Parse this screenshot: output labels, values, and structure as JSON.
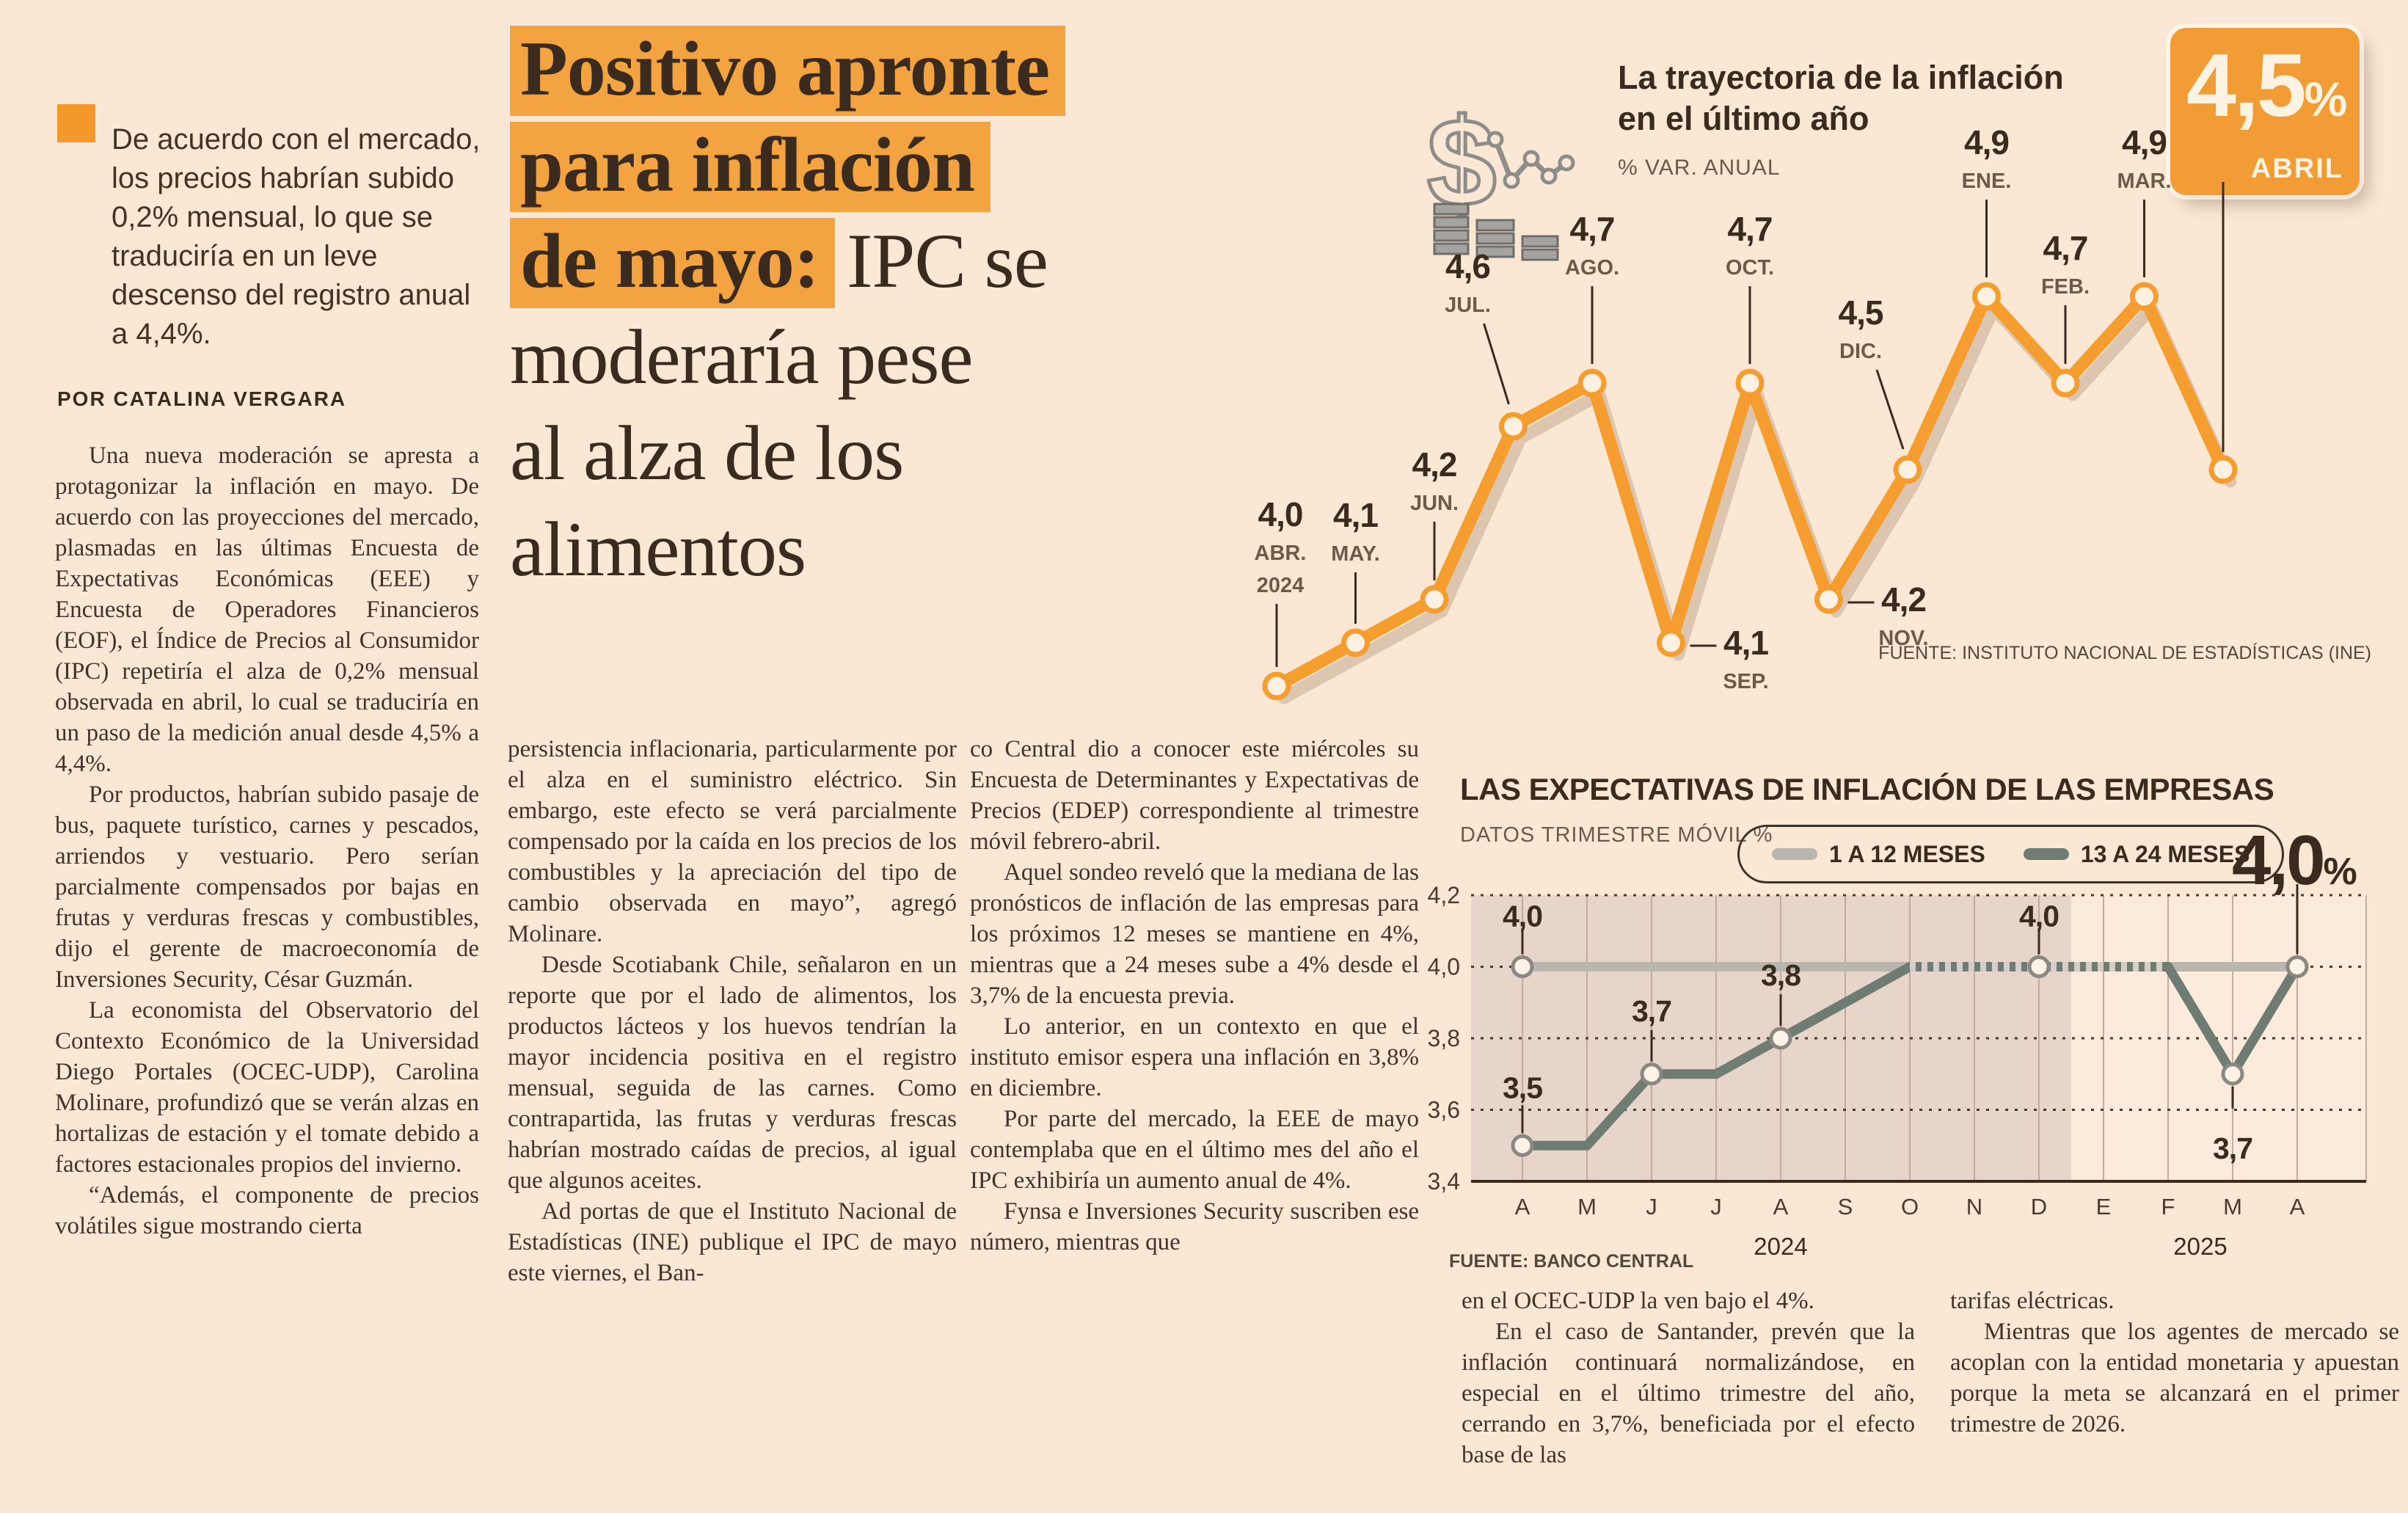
{
  "summary": {
    "text": "De acuerdo con el mercado, los precios habrían subido 0,2% mensual, lo que se traduciría en un leve descenso del registro anual a 4,4%."
  },
  "byline": "POR CATALINA VERGARA",
  "headline": {
    "highlight_line1": "Positivo apronte",
    "highlight_line2": "para inflación",
    "highlight_line3": "de mayo:",
    "rest_inline": "IPC se",
    "rest_line1": "moderaría pese",
    "rest_line2": "al alza de los",
    "rest_line3": "alimentos"
  },
  "article": {
    "col1": [
      "Una nueva moderación se apresta a protagonizar la inflación en mayo. De acuerdo con las proyecciones del mercado, plasmadas en las últimas Encuesta de Expectativas Económicas (EEE) y Encuesta de Operadores Financieros (EOF), el Índice de Precios al Consumidor (IPC) repetiría el alza de 0,2% mensual observada en abril, lo cual se traduciría en un paso de la medición anual desde 4,5% a 4,4%.",
      "Por productos, habrían subido pasaje de bus, paquete turístico, carnes y pescados, arriendos y vestuario. Pero serían parcialmente compensados por bajas en frutas y verduras frescas y combustibles, dijo el gerente de macroeconomía de Inversiones Security, César Guzmán.",
      "La economista del Observatorio del Contexto Económico de la Universidad Diego Portales (OCEC-UDP), Carolina Molinare, profundizó que se verán alzas en hortalizas de estación y el tomate debido a factores estacionales propios del invierno.",
      "“Además, el componente de precios volátiles sigue mostrando cierta"
    ],
    "col2": [
      "persistencia inflacionaria, particularmente por el alza en el suministro eléctrico. Sin embargo, este efecto se verá parcialmente compensado por la caída en los precios de los combustibles y la apreciación del tipo de cambio observada en mayo”, agregó Molinare.",
      "Desde Scotiabank Chile, señalaron en un reporte que por el lado de alimentos, los productos lácteos y los huevos tendrían la mayor incidencia positiva en el registro mensual, seguida de las carnes. Como contrapartida, las frutas y verduras frescas habrían mostrado caídas de precios, al igual que algunos aceites.",
      "Ad portas de que el Instituto Nacional de Estadísticas (INE) publique el IPC de mayo este viernes, el Ban-"
    ],
    "col3": [
      "co Central dio a conocer este miércoles su Encuesta de Determinantes y Expectativas de Precios (EDEP) correspondiente al trimestre móvil febrero-abril.",
      "Aquel sondeo reveló que la mediana de las pronósticos de inflación de las empresas para los próximos 12 meses se mantiene en 4%, mientras que a 24 meses sube a 4% desde el 3,7% de la encuesta previa.",
      "Lo anterior, en un contexto en que el instituto emisor espera una inflación en 3,8% en diciembre.",
      "Por parte del mercado, la EEE de mayo contemplaba que en el último mes del año el IPC exhibiría un aumento anual de 4%.",
      "Fynsa e Inversiones Security suscriben ese número, mientras que"
    ],
    "col4": [
      "en el OCEC-UDP la ven bajo el 4%.",
      "En el caso de Santander, prevén que la inflación continuará normalizándose, en especial en el último trimestre del año, cerrando en 3,7%, beneficiada por el efecto base de las"
    ],
    "col5": [
      "tarifas eléctricas.",
      "Mientras que los agentes de mercado se acoplan con la entidad monetaria y apuestan porque la meta se alcanzará en el primer trimestre de 2026."
    ]
  },
  "chart_data": [
    {
      "type": "line",
      "title": "La trayectoria de la inflación en el último año",
      "title_line1": "La trayectoria de la inflación",
      "title_line2": "en el último año",
      "subtitle": "% VAR. ANUAL",
      "categories": [
        "ABR.",
        "MAY.",
        "JUN.",
        "JUL.",
        "AGO.",
        "SEP.",
        "OCT.",
        "NOV.",
        "DIC.",
        "ENE.",
        "FEB.",
        "MAR.",
        "ABR."
      ],
      "first_year": "2024",
      "values": [
        4.0,
        4.1,
        4.2,
        4.6,
        4.7,
        4.1,
        4.7,
        4.2,
        4.5,
        4.9,
        4.7,
        4.9,
        4.5
      ],
      "badge": {
        "value": "4,5",
        "pct": "%",
        "month": "ABRIL"
      },
      "source": "FUENTE: INSTITUTO NACIONAL DE ESTADÍSTICAS (INE)",
      "line_color": "#f59d2f",
      "ylim": [
        3.9,
        5.0
      ],
      "legend_position": "none",
      "grid": false
    },
    {
      "type": "line",
      "title": "LAS EXPECTATIVAS DE INFLACIÓN DE LAS EMPRESAS",
      "subtitle": "DATOS TRIMESTRE MÓVIL %",
      "categories": [
        "A",
        "M",
        "J",
        "J",
        "A",
        "S",
        "O",
        "N",
        "D",
        "E",
        "F",
        "M",
        "A"
      ],
      "year_labels": [
        "2024",
        "2025"
      ],
      "yticks": [
        4.2,
        4.0,
        3.8,
        3.6,
        3.4
      ],
      "ylim": [
        3.4,
        4.2
      ],
      "series": [
        {
          "name": "1 A 12 MESES",
          "color": "#b9b6b0",
          "values": [
            4.0,
            4.0,
            4.0,
            4.0,
            4.0,
            4.0,
            4.0,
            4.0,
            4.0,
            4.0,
            4.0,
            4.0,
            4.0
          ]
        },
        {
          "name": "13 A 24 MESES",
          "color": "#6e7c71",
          "values": [
            3.5,
            3.5,
            3.7,
            3.7,
            3.8,
            3.9,
            4.0,
            4.0,
            4.0,
            4.0,
            4.0,
            3.7,
            4.0
          ]
        }
      ],
      "point_labels": {
        "s1": {
          "0": "4,0",
          "8": "4,0"
        },
        "s2": {
          "0": "3,5",
          "2": "3,7",
          "4": "3,8",
          "11": "3,7"
        }
      },
      "end_label_value": "4,0",
      "end_label_pct": "%",
      "source": "FUENTE: BANCO CENTRAL",
      "shaded_months": 9,
      "grid": true,
      "legend_position": "top"
    }
  ],
  "colors": {
    "page_bg": "#fbe8d4",
    "highlight_orange": "#f3a440",
    "badge_orange": "#f19c35",
    "line_orange": "#f59d2f",
    "dark_text": "#3a2b1e",
    "muted_text": "#6b5a49",
    "shaded_region": "#e7d4ca",
    "series_light": "#b9b6b0",
    "series_dark": "#6e7c71"
  }
}
